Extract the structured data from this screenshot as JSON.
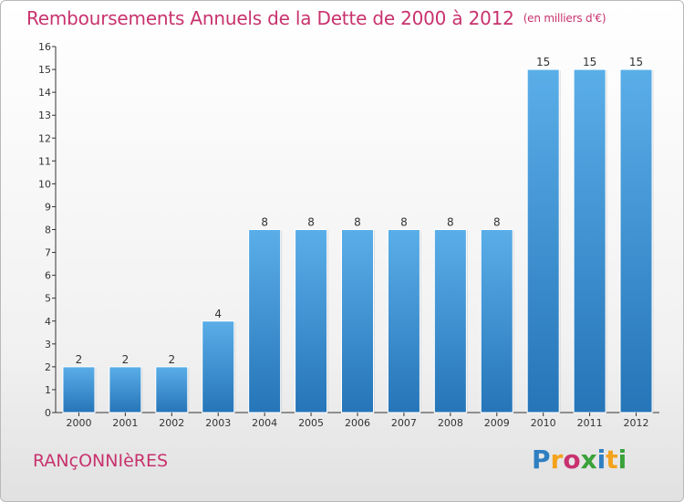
{
  "title": "Remboursements Annuels de la Dette de 2000 à 2012",
  "unit": "(en milliers d'€)",
  "commune": "RANçONNIèRES",
  "logo": {
    "letters": [
      "P",
      "r",
      "o",
      "x",
      "i",
      "t",
      "i"
    ],
    "colors": [
      "#2e7fc2",
      "#f3a21b",
      "#c8326e",
      "#3aa23a",
      "#2e7fc2",
      "#f3a21b",
      "#3aa23a"
    ]
  },
  "colors": {
    "bar_top": "#5aaee8",
    "bar_bottom": "#2575b8",
    "accent": "#c8326e"
  },
  "chart_data": {
    "type": "bar",
    "categories": [
      "2000",
      "2001",
      "2002",
      "2003",
      "2004",
      "2005",
      "2006",
      "2007",
      "2008",
      "2009",
      "2010",
      "2011",
      "2012"
    ],
    "values": [
      2,
      2,
      2,
      4,
      8,
      8,
      8,
      8,
      8,
      8,
      15,
      15,
      15
    ],
    "yticks": [
      0,
      1,
      2,
      3,
      4,
      5,
      6,
      7,
      8,
      9,
      10,
      11,
      12,
      13,
      14,
      15,
      16
    ],
    "ylim": [
      0,
      16
    ],
    "grid": false,
    "xlabel": "",
    "ylabel": ""
  }
}
